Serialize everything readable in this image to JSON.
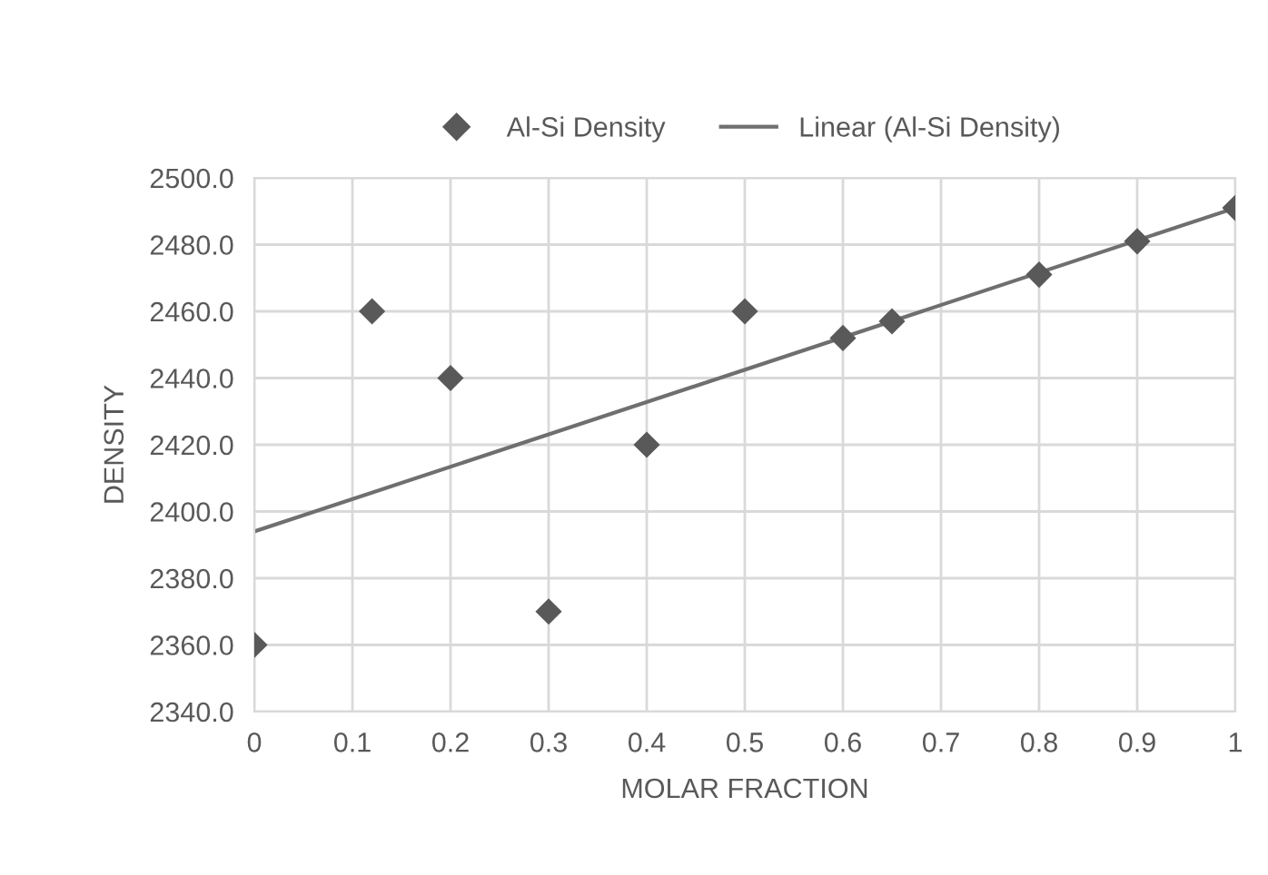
{
  "chart_data": {
    "type": "scatter",
    "xlabel": "MOLAR FRACTION",
    "ylabel": "DENSITY",
    "series": [
      {
        "name": "Al-Si Density",
        "color": "#595959",
        "marker": "diamond",
        "x": [
          0,
          0.12,
          0.2,
          0.3,
          0.4,
          0.5,
          0.6,
          0.65,
          0.8,
          0.9,
          1.0
        ],
        "values": [
          2360,
          2460,
          2440,
          2370,
          2420,
          2460,
          2452,
          2457,
          2471,
          2481,
          2491
        ]
      },
      {
        "name": "Linear (Al-Si Density)",
        "type": "line",
        "color": "#6f6f6f",
        "line_style": "solid",
        "x": [
          0,
          1
        ],
        "values": [
          2394,
          2491
        ]
      }
    ],
    "xlim": [
      0,
      1
    ],
    "xticks": [
      0,
      0.1,
      0.2,
      0.3,
      0.4,
      0.5,
      0.6,
      0.7,
      0.8,
      0.9,
      1
    ],
    "ylim": [
      2340,
      2500
    ],
    "yticks": [
      {
        "value": 2340,
        "label": "2340.0"
      },
      {
        "value": 2360,
        "label": "2360.0"
      },
      {
        "value": 2380,
        "label": "2380.0"
      },
      {
        "value": 2400,
        "label": "2400.0"
      },
      {
        "value": 2420,
        "label": "2420.0"
      },
      {
        "value": 2440,
        "label": "2440.0"
      },
      {
        "value": 2460,
        "label": "2460.0"
      },
      {
        "value": 2480,
        "label": "2480.0"
      },
      {
        "value": 2500,
        "label": "2500.0"
      }
    ],
    "grid": true,
    "legend": "top"
  }
}
